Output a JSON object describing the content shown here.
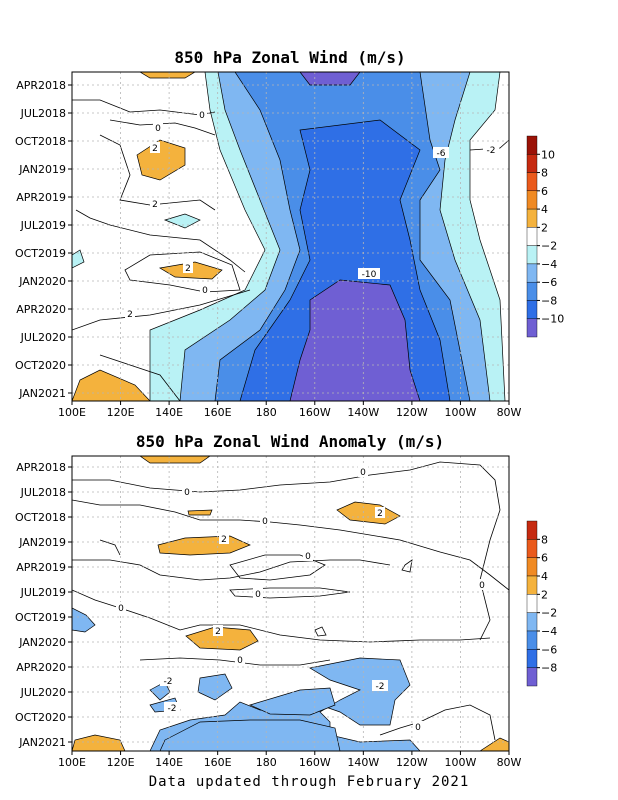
{
  "footer": "Data updated through February 2021",
  "colors": {
    "c_-10": "#6f5fd3",
    "c_-8": "#2f6fe6",
    "c_-6": "#4a8ee8",
    "c_-4": "#7fb7f2",
    "c_-2": "#b9f2f5",
    "c_2": "#f4b23d",
    "c_4": "#f4b23d",
    "c_6": "#f08a23",
    "c_8": "#ea5a1c",
    "c_10": "#c62a10",
    "c_12": "#9b1207",
    "zero": "#ffffff",
    "grid": "#b5b5b5"
  },
  "chart_data": [
    {
      "type": "heatmap",
      "title": "850 hPa Zonal Wind (m/s)",
      "x_ticks": [
        "100E",
        "120E",
        "140E",
        "160E",
        "180",
        "160W",
        "140W",
        "120W",
        "100W",
        "80W"
      ],
      "y_ticks": [
        "APR2018",
        "JUL2018",
        "OCT2018",
        "JAN2019",
        "APR2019",
        "JUL2019",
        "OCT2019",
        "JAN2020",
        "APR2020",
        "JUL2020",
        "OCT2020",
        "JAN2021"
      ],
      "xlim": [
        "100E",
        "80W"
      ],
      "ylim": [
        "MAR2018",
        "FEB2021"
      ],
      "grid": true,
      "colorbar": {
        "labels": [
          "10",
          "8",
          "6",
          "4",
          "2",
          "−2",
          "−4",
          "−6",
          "−8",
          "−10"
        ],
        "colors": [
          "c_12",
          "c_10",
          "c_8",
          "c_6",
          "c_4",
          "zero",
          "c_-2",
          "c_-4",
          "c_-6",
          "c_-8",
          "c_-10"
        ]
      },
      "contour_labels": [
        "2",
        "0",
        "2",
        "0",
        "2",
        "0",
        "2",
        "-6",
        "-10",
        "-2"
      ]
    },
    {
      "type": "heatmap",
      "title": "850 hPa Zonal Wind Anomaly (m/s)",
      "x_ticks": [
        "100E",
        "120E",
        "140E",
        "160E",
        "180",
        "160W",
        "140W",
        "120W",
        "100W",
        "80W"
      ],
      "y_ticks": [
        "APR2018",
        "JUL2018",
        "OCT2018",
        "JAN2019",
        "APR2019",
        "JUL2019",
        "OCT2019",
        "JAN2020",
        "APR2020",
        "JUL2020",
        "OCT2020",
        "JAN2021"
      ],
      "xlim": [
        "100E",
        "80W"
      ],
      "ylim": [
        "MAR2018",
        "FEB2021"
      ],
      "grid": true,
      "colorbar": {
        "labels": [
          "8",
          "6",
          "4",
          "2",
          "−2",
          "−4",
          "−6",
          "−8"
        ],
        "colors": [
          "c_10",
          "c_8",
          "c_6",
          "c_4",
          "zero",
          "c_-4",
          "c_-6",
          "c_-8",
          "c_-10"
        ]
      },
      "contour_labels": [
        "0",
        "0",
        "0",
        "2",
        "2",
        "0",
        "0",
        "0",
        "0",
        "2",
        "0",
        "-2",
        "-2",
        "-2",
        "0"
      ]
    }
  ]
}
